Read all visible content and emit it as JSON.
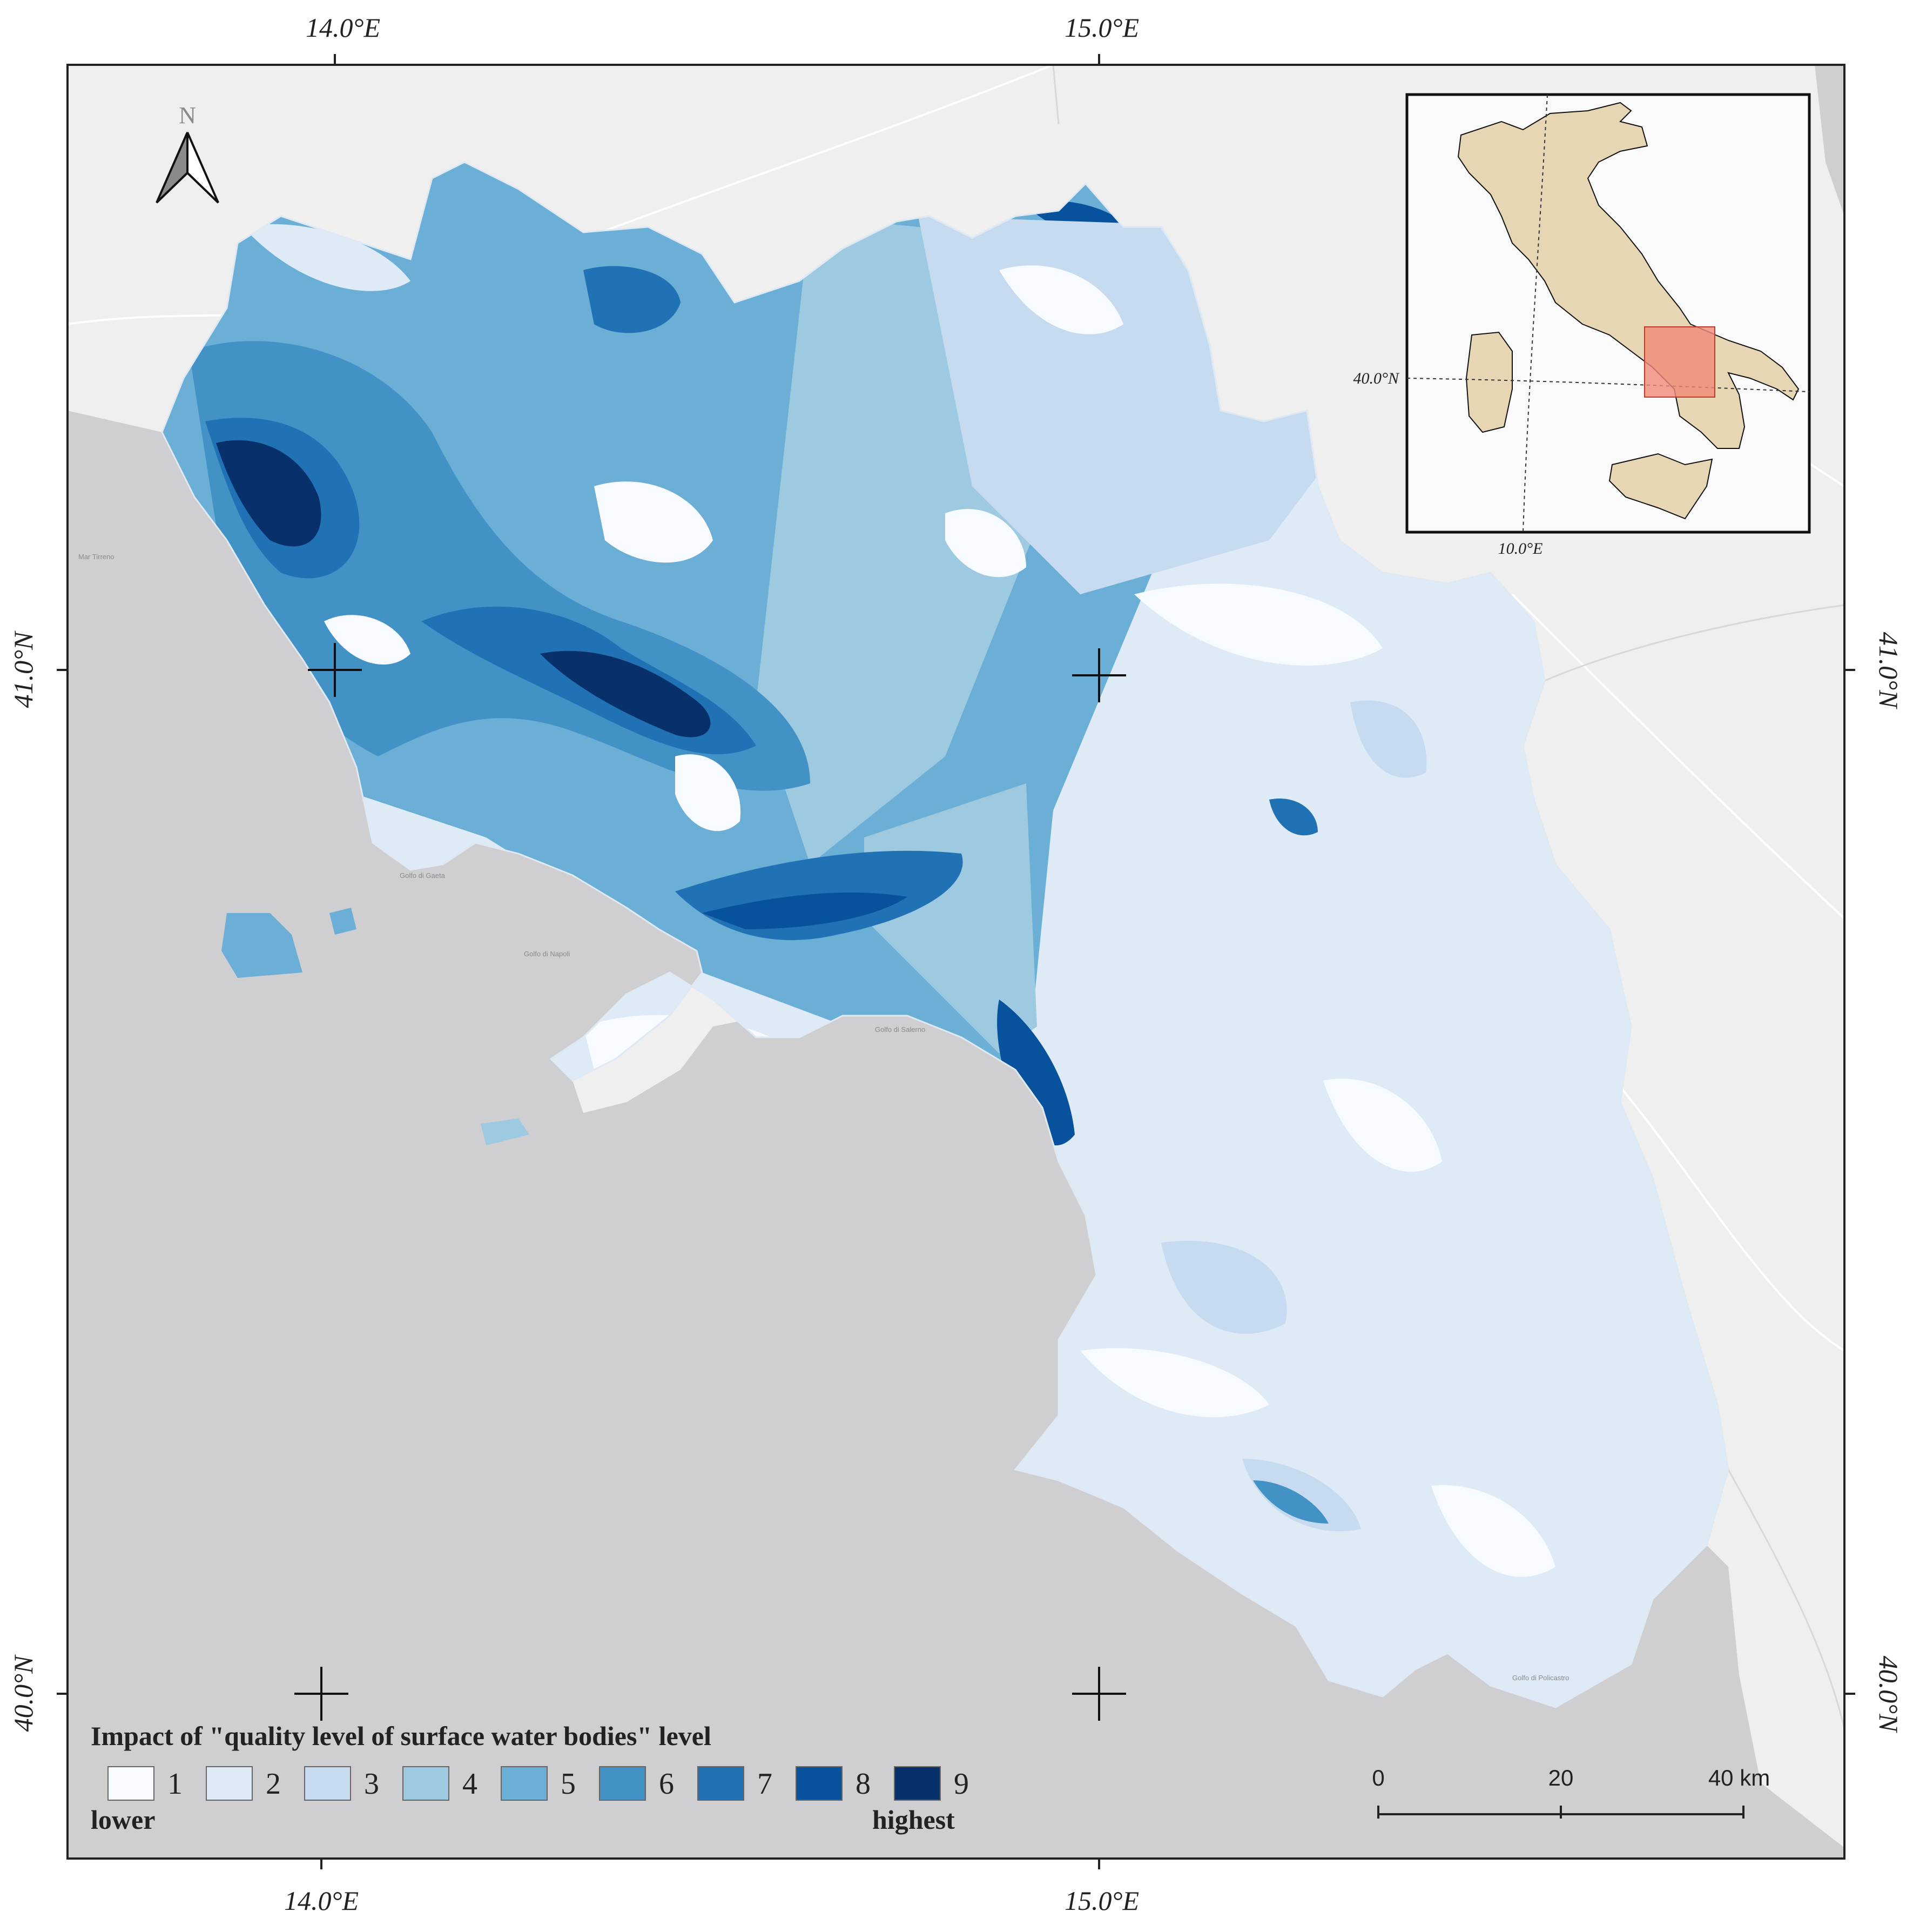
{
  "axes": {
    "top": [
      "14.0°E",
      "15.0°E"
    ],
    "bottom": [
      "14.0°E",
      "15.0°E"
    ],
    "left": [
      "41.0°N",
      "40.0°N"
    ],
    "right": [
      "41.0°N",
      "40.0°N"
    ]
  },
  "north_arrow": {
    "label": "N"
  },
  "inset": {
    "lat_label": "40.0°N",
    "lon_label": "10.0°E",
    "land_color": "#e6d6b4",
    "highlight_color": "#f08a78"
  },
  "sea_labels": [
    "Mar Tirreno",
    "Golfo di Gaeta",
    "Golfo di Napoli",
    "Golfo di Salerno",
    "Golfo di Policastro"
  ],
  "legend": {
    "title": "Impact of \"quality level of surface water bodies\" level",
    "classes": [
      {
        "label": "1",
        "color": "#f7fbff"
      },
      {
        "label": "2",
        "color": "#deebf7"
      },
      {
        "label": "3",
        "color": "#c6dbef"
      },
      {
        "label": "4",
        "color": "#9ecae1"
      },
      {
        "label": "5",
        "color": "#6baed6"
      },
      {
        "label": "6",
        "color": "#4292c6"
      },
      {
        "label": "7",
        "color": "#2171b5"
      },
      {
        "label": "8",
        "color": "#08519c"
      },
      {
        "label": "9",
        "color": "#08306b"
      }
    ],
    "low_label": "lower",
    "high_label": "highest"
  },
  "scale_bar": {
    "labels": [
      "0",
      "20",
      "40 km"
    ]
  },
  "colors": {
    "sea": "#cfcfd2",
    "surrounding_land": "#efefef",
    "frame": "#222222"
  }
}
